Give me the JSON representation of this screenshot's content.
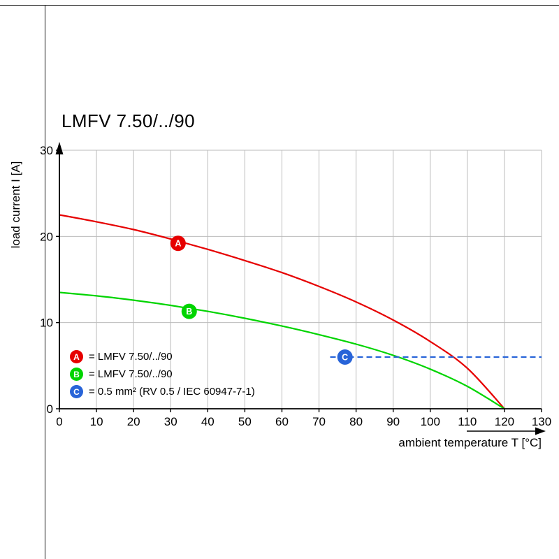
{
  "page": {
    "title": "LMFV 7.50/../90"
  },
  "chart_data": {
    "type": "line",
    "title": "LMFV 7.50/../90",
    "xlabel": "ambient temperature T [°C]",
    "ylabel": "load current I [A]",
    "xlim": [
      0,
      130
    ],
    "ylim": [
      0,
      30
    ],
    "x_ticks": [
      0,
      10,
      20,
      30,
      40,
      50,
      60,
      70,
      80,
      90,
      100,
      110,
      120,
      130
    ],
    "y_ticks": [
      0,
      10,
      20,
      30
    ],
    "grid": true,
    "colors": {
      "red": "#e60000",
      "green": "#00d400",
      "blue": "#2864d8",
      "grid": "#bbbbbb",
      "axis": "#000000"
    },
    "series": [
      {
        "id": "A",
        "legend_label": "= LMFV 7.50/../90",
        "color_key": "red",
        "line_style": "solid",
        "smooth": true,
        "points": [
          [
            0,
            22.5
          ],
          [
            10,
            21.7
          ],
          [
            20,
            20.8
          ],
          [
            30,
            19.7
          ],
          [
            40,
            18.5
          ],
          [
            50,
            17.2
          ],
          [
            60,
            15.8
          ],
          [
            70,
            14.2
          ],
          [
            80,
            12.4
          ],
          [
            90,
            10.3
          ],
          [
            100,
            7.8
          ],
          [
            110,
            4.7
          ],
          [
            120,
            0
          ]
        ],
        "marker": {
          "x": 32,
          "y": 19.2
        }
      },
      {
        "id": "B",
        "legend_label": "= LMFV 7.50/../90",
        "color_key": "green",
        "line_style": "solid",
        "smooth": true,
        "points": [
          [
            0,
            13.5
          ],
          [
            10,
            13.1
          ],
          [
            20,
            12.6
          ],
          [
            30,
            12.0
          ],
          [
            40,
            11.3
          ],
          [
            50,
            10.5
          ],
          [
            60,
            9.6
          ],
          [
            70,
            8.6
          ],
          [
            80,
            7.5
          ],
          [
            90,
            6.2
          ],
          [
            100,
            4.6
          ],
          [
            110,
            2.6
          ],
          [
            120,
            0
          ]
        ],
        "marker": {
          "x": 35,
          "y": 11.3
        }
      },
      {
        "id": "C",
        "legend_label": "= 0.5 mm² (RV 0.5 / IEC 60947-7-1)",
        "color_key": "blue",
        "line_style": "dashed",
        "smooth": false,
        "points": [
          [
            73,
            6
          ],
          [
            130,
            6
          ]
        ],
        "marker": {
          "x": 77,
          "y": 6
        }
      }
    ]
  }
}
